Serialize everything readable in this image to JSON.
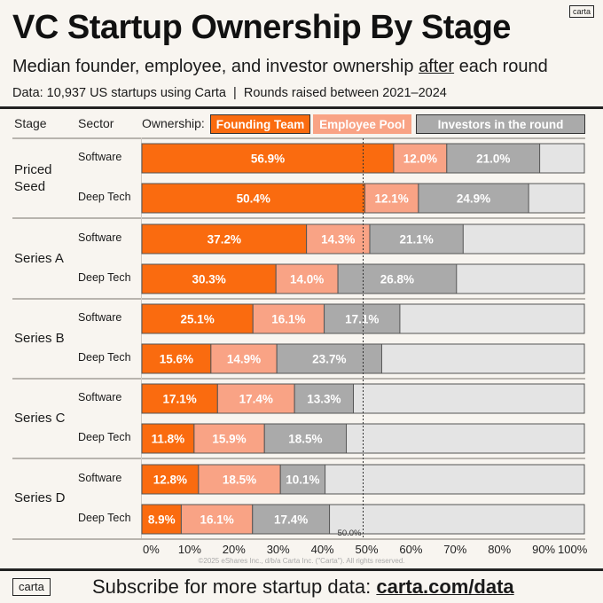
{
  "header": {
    "title": "VC Startup Ownership By Stage",
    "subtitle_before": "Median founder, employee, and investor ownership ",
    "subtitle_emph": "after",
    "subtitle_after": " each round",
    "data_line": "Data: 10,937 US startups using Carta  |  Rounds raised between 2021–2024",
    "logo": "carta"
  },
  "columns": {
    "stage": "Stage",
    "sector": "Sector",
    "ownership": "Ownership:"
  },
  "footer": {
    "copyright": "©2025 eShares Inc., d/b/a Carta Inc. (\"Carta\"). All rights reserved.",
    "logo": "carta",
    "subscribe_text": "Subscribe for more startup data: ",
    "subscribe_link": "carta.com/data"
  },
  "colors": {
    "founding": "#fa6b0f",
    "employee": "#f9a385",
    "investors": "#aaaaaa",
    "remainder": "#e4e4e4",
    "background": "#f8f5f0"
  },
  "chart_data": {
    "type": "bar",
    "orientation": "horizontal-stacked",
    "title": "VC Startup Ownership By Stage",
    "xlabel": "",
    "ylabel": "",
    "xlim": [
      0,
      100
    ],
    "x_ticks": [
      "0%",
      "10%",
      "20%",
      "30%",
      "40%",
      "50%",
      "60%",
      "70%",
      "80%",
      "90%",
      "100%"
    ],
    "reference_line": {
      "value": 50,
      "label": "50.0%"
    },
    "legend": [
      "Founding Team",
      "Employee Pool",
      "Investors in the round"
    ],
    "legend_position": "top",
    "groups": [
      {
        "stage": "Priced Seed",
        "rows": [
          {
            "sector": "Software",
            "founding": 56.9,
            "employee": 12.0,
            "investors": 21.0
          },
          {
            "sector": "Deep Tech",
            "founding": 50.4,
            "employee": 12.1,
            "investors": 24.9
          }
        ]
      },
      {
        "stage": "Series A",
        "rows": [
          {
            "sector": "Software",
            "founding": 37.2,
            "employee": 14.3,
            "investors": 21.1
          },
          {
            "sector": "Deep Tech",
            "founding": 30.3,
            "employee": 14.0,
            "investors": 26.8
          }
        ]
      },
      {
        "stage": "Series B",
        "rows": [
          {
            "sector": "Software",
            "founding": 25.1,
            "employee": 16.1,
            "investors": 17.1
          },
          {
            "sector": "Deep Tech",
            "founding": 15.6,
            "employee": 14.9,
            "investors": 23.7
          }
        ]
      },
      {
        "stage": "Series C",
        "rows": [
          {
            "sector": "Software",
            "founding": 17.1,
            "employee": 17.4,
            "investors": 13.3
          },
          {
            "sector": "Deep Tech",
            "founding": 11.8,
            "employee": 15.9,
            "investors": 18.5
          }
        ]
      },
      {
        "stage": "Series D",
        "rows": [
          {
            "sector": "Software",
            "founding": 12.8,
            "employee": 18.5,
            "investors": 10.1
          },
          {
            "sector": "Deep Tech",
            "founding": 8.9,
            "employee": 16.1,
            "investors": 17.4
          }
        ]
      }
    ]
  }
}
